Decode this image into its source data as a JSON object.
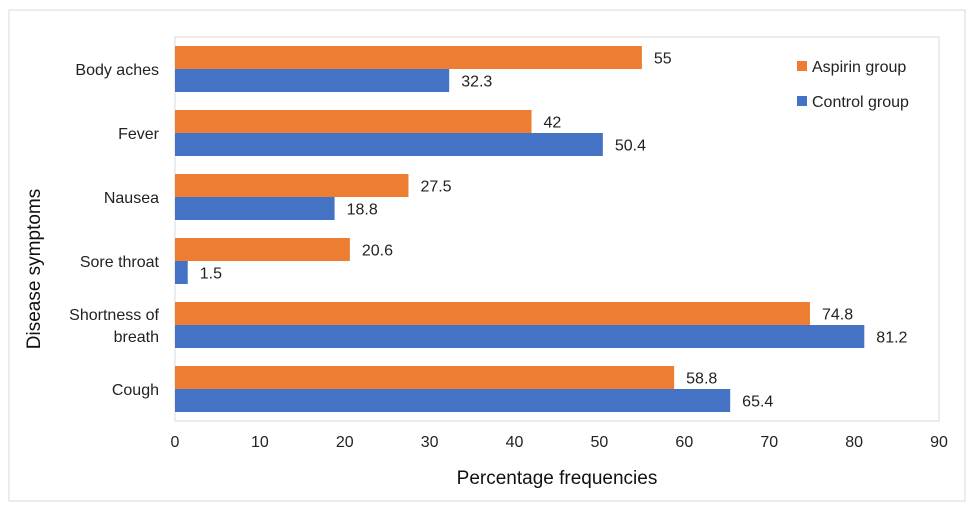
{
  "chart_data": {
    "type": "bar",
    "orientation": "horizontal",
    "categories": [
      "Body aches",
      "Fever",
      "Nausea",
      "Sore throat",
      "Shortness of breath",
      "Cough"
    ],
    "category_label_lines": [
      [
        "Body aches"
      ],
      [
        "Fever"
      ],
      [
        "Nausea"
      ],
      [
        "Sore throat"
      ],
      [
        "Shortness of",
        "breath"
      ],
      [
        "Cough"
      ]
    ],
    "series": [
      {
        "name": "Aspirin group",
        "color": "#ED7D31",
        "values": [
          55,
          42,
          27.5,
          20.6,
          74.8,
          58.8
        ]
      },
      {
        "name": "Control group",
        "color": "#4472C4",
        "values": [
          32.3,
          50.4,
          18.8,
          1.5,
          81.2,
          65.4
        ]
      }
    ],
    "xlabel": "Percentage frequencies",
    "ylabel": "Disease symptoms",
    "xlim": [
      0,
      90
    ],
    "xticks": [
      0,
      10,
      20,
      30,
      40,
      50,
      60,
      70,
      80,
      90
    ],
    "grid": false,
    "legend_position": "top-right"
  }
}
